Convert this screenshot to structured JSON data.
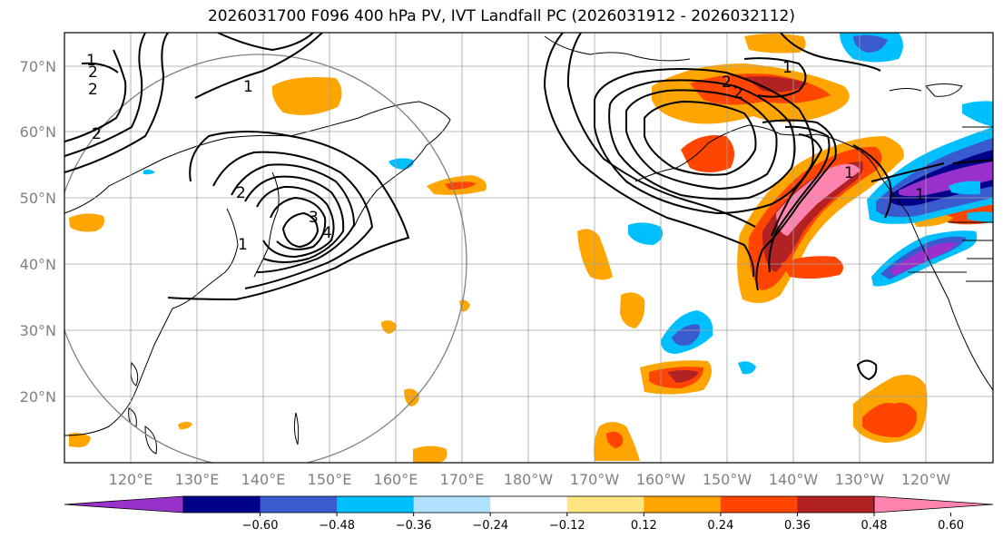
{
  "title": "2026031700 F096 400 hPa PV, IVT Landfall PC (2026031912 - 2026032112)",
  "latitude_labels": [
    "70°N",
    "60°N",
    "50°N",
    "40°N",
    "30°N",
    "20°N"
  ],
  "longitude_labels": [
    "120°E",
    "130°E",
    "140°E",
    "150°E",
    "160°E",
    "170°E",
    "180°W",
    "170°W",
    "160°W",
    "150°W",
    "140°W",
    "130°W",
    "120°W"
  ],
  "colorbar": {
    "tick_labels": [
      "−0.60",
      "−0.48",
      "−0.36",
      "−0.24",
      "−0.12",
      "0.12",
      "0.24",
      "0.36",
      "0.48",
      "0.60"
    ],
    "colors": [
      "#9932CC",
      "#00008B",
      "#3A5BCF",
      "#00BFFF",
      "#B0E2FF",
      "#FFFFFF",
      "#FFE680",
      "#FFA500",
      "#FF4500",
      "#B22222",
      "#FF85B0"
    ]
  },
  "contour_labels": {
    "west_1": "1",
    "west_2a": "2",
    "west_2b": "2",
    "west_2c": "2",
    "west_1b": "1",
    "japan_3": "3",
    "japan_4": "4",
    "japan_2": "2",
    "japan_1": "1",
    "aleut_2a": "2",
    "aleut_2b": "2",
    "aleut_1": "1",
    "alaska_1": "1",
    "canada_1": "1"
  }
}
